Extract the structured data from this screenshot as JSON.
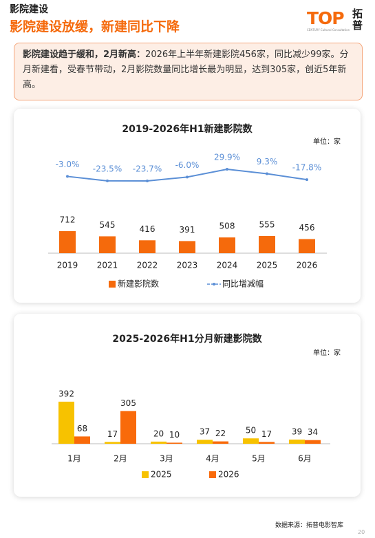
{
  "header": {
    "section": "影院建设",
    "title": "影院建设放缓，新建同比下降",
    "logo_letters": "TOP",
    "logo_cn": "拓普",
    "logo_en": "CENTURY Cultural Consultation"
  },
  "summary": {
    "lead": "影院建设趋于缓和，2月新高：",
    "text": "2026年上半年新建影院456家，同比减少99家。分月新建看，受春节带动，2月影院数量同比增长最为明显，达到305家，创近5年新高。"
  },
  "chart_data": [
    {
      "type": "bar",
      "title": "2019-2026年H1新建影院数",
      "unit": "单位：家",
      "categories": [
        "2019",
        "2021",
        "2022",
        "2023",
        "2024",
        "2025",
        "2026"
      ],
      "series": [
        {
          "name": "新建影院数",
          "type": "bar",
          "color": "#f56a0c",
          "values": [
            712,
            545,
            416,
            391,
            508,
            555,
            456
          ]
        },
        {
          "name": "同比增减幅",
          "type": "line",
          "color": "#5b8fd6",
          "values": [
            -3.0,
            -23.5,
            -23.7,
            -6.0,
            29.9,
            9.3,
            -17.8
          ],
          "value_labels": [
            "-3.0%",
            "-23.5%",
            "-23.7%",
            "-6.0%",
            "29.9%",
            "9.3%",
            "-17.8%"
          ]
        }
      ]
    },
    {
      "type": "bar",
      "title": "2025-2026年H1分月新建影院数",
      "unit": "单位：家",
      "categories": [
        "1月",
        "2月",
        "3月",
        "4月",
        "5月",
        "6月"
      ],
      "series": [
        {
          "name": "2025",
          "type": "bar",
          "color": "#f7c200",
          "values": [
            392,
            17,
            20,
            37,
            50,
            39
          ]
        },
        {
          "name": "2026",
          "type": "bar",
          "color": "#f96a0a",
          "values": [
            68,
            305,
            10,
            22,
            17,
            34
          ]
        }
      ]
    }
  ],
  "footer": {
    "source": "数据来源：拓普电影智库",
    "page": "20"
  }
}
